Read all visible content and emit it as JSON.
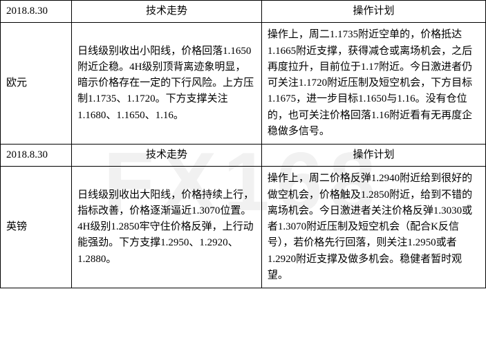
{
  "watermark": "FX168",
  "sections": [
    {
      "date": "2018.8.30",
      "tech_header": "技术走势",
      "plan_header": "操作计划",
      "label": "欧元",
      "tech": "日线级别收出小阳线，价格回落1.1650附近企稳。4H级别顶背离迹象明显，暗示价格存在一定的下行风险。上方压制1.1735、1.1720。下方支撑关注1.1680、1.1650、1.16。",
      "plan": "操作上，周二1.1735附近空单的，价格抵达1.1665附近支撑，获得减仓或离场机会，之后再度拉升，目前位于1.17附近。今日激进者仍可关注1.1720附近压制及短空机会，下方目标1.1675，进一步目标1.1650与1.16。没有仓位的，也可关注价格回落1.16附近看有无再度企稳做多信号。"
    },
    {
      "date": "2018.8.30",
      "tech_header": "技术走势",
      "plan_header": "操作计划",
      "label": "英镑",
      "tech": "日线级别收出大阳线，价格持续上行，指标改善，价格逐渐逼近1.3070位置。4H级别1.2850牢守住价格反弹，上行动能强劲。下方支撑1.2950、1.2920、1.2880。",
      "plan": "操作上，周二价格反弹1.2940附近给到很好的做空机会，价格触及1.2850附近，给到不错的离场机会。今日激进者关注价格反弹1.3030或者1.3070附近压制及短空机会（配合K反信号），若价格先行回落，则关注1.2950或者1.2920附近支撑及做多机会。稳健者暂时观望。"
    }
  ]
}
